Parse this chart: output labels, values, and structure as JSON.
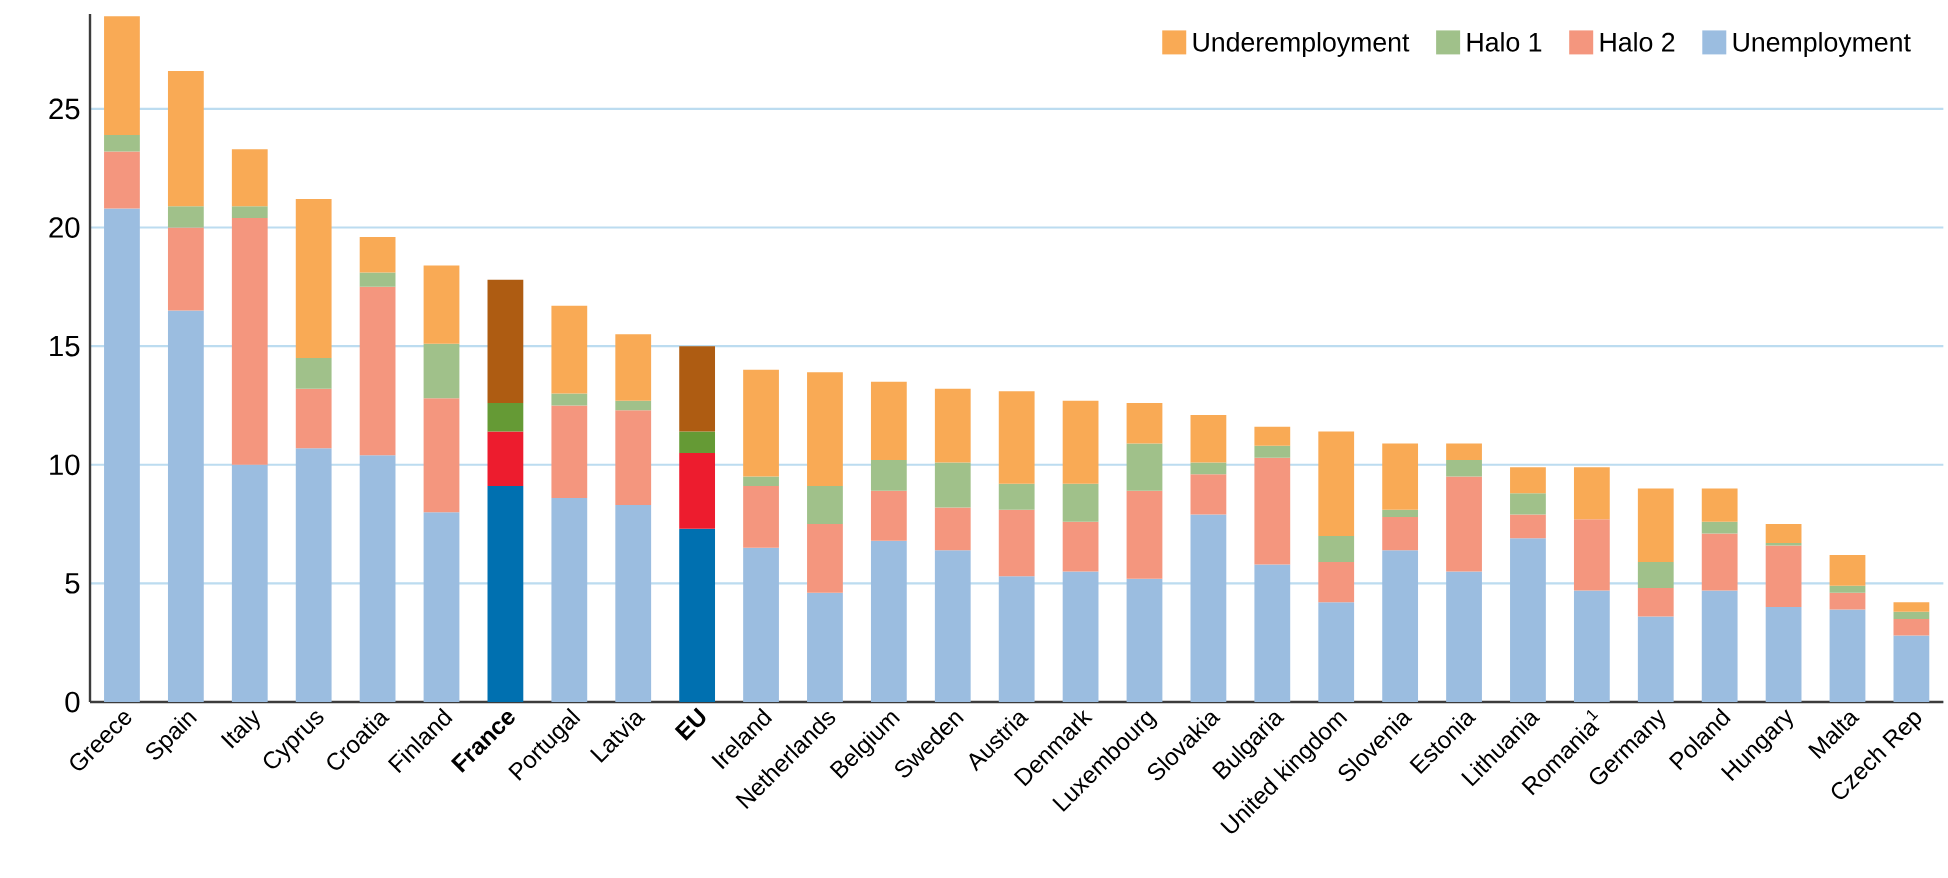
{
  "chart_data": {
    "type": "bar",
    "stacked": true,
    "categories": [
      "Greece",
      "Spain",
      "Italy",
      "Cyprus",
      "Croatia",
      "Finland",
      "France",
      "Portugal",
      "Latvia",
      "EU",
      "Ireland",
      "Netherlands",
      "Belgium",
      "Sweden",
      "Austria",
      "Denmark",
      "Luxembourg",
      "Slovakia",
      "Bulgaria",
      "United kingdom",
      "Slovenia",
      "Estonia",
      "Lithuania",
      "Romania$^{1}$",
      "Germany",
      "Poland",
      "Hungary",
      "Malta",
      "Czech Rep"
    ],
    "series": [
      {
        "name": "Unemployment",
        "color": "#9bbde0",
        "colors": [
          "#9bbde0",
          "#9bbde0",
          "#9bbde0",
          "#9bbde0",
          "#9bbde0",
          "#9bbde0",
          "#0070b0",
          "#9bbde0",
          "#9bbde0",
          "#0070b0",
          "#9bbde0",
          "#9bbde0",
          "#9bbde0",
          "#9bbde0",
          "#9bbde0",
          "#9bbde0",
          "#9bbde0",
          "#9bbde0",
          "#9bbde0",
          "#9bbde0",
          "#9bbde0",
          "#9bbde0",
          "#9bbde0",
          "#9bbde0",
          "#9bbde0",
          "#9bbde0",
          "#9bbde0",
          "#9bbde0",
          "#9bbde0"
        ],
        "values": [
          20.8,
          16.5,
          10.0,
          10.7,
          10.4,
          8.0,
          9.1,
          8.6,
          8.3,
          7.3,
          6.5,
          4.6,
          6.8,
          6.4,
          5.3,
          5.5,
          5.2,
          7.9,
          5.8,
          4.2,
          6.4,
          5.5,
          6.9,
          4.7,
          3.6,
          4.7,
          4.0,
          3.9,
          2.8
        ]
      },
      {
        "name": "Halo 2",
        "color": "#f4967e",
        "colors": [
          "#f4967e",
          "#f4967e",
          "#f4967e",
          "#f4967e",
          "#f4967e",
          "#f4967e",
          "#ed1c2e",
          "#f4967e",
          "#f4967e",
          "#ed1c2e",
          "#f4967e",
          "#f4967e",
          "#f4967e",
          "#f4967e",
          "#f4967e",
          "#f4967e",
          "#f4967e",
          "#f4967e",
          "#f4967e",
          "#f4967e",
          "#f4967e",
          "#f4967e",
          "#f4967e",
          "#f4967e",
          "#f4967e",
          "#f4967e",
          "#f4967e",
          "#f4967e",
          "#f4967e"
        ],
        "values": [
          2.4,
          3.5,
          10.4,
          2.5,
          7.1,
          4.8,
          2.3,
          3.9,
          4.0,
          3.2,
          2.6,
          2.9,
          2.1,
          1.8,
          2.8,
          2.1,
          3.7,
          1.7,
          4.5,
          1.7,
          1.4,
          4.0,
          1.0,
          3.0,
          1.2,
          2.4,
          2.6,
          0.7,
          0.7
        ]
      },
      {
        "name": "Halo 1",
        "color": "#a0c18a",
        "colors": [
          "#a0c18a",
          "#a0c18a",
          "#a0c18a",
          "#a0c18a",
          "#a0c18a",
          "#a0c18a",
          "#659a35",
          "#a0c18a",
          "#a0c18a",
          "#659a35",
          "#a0c18a",
          "#a0c18a",
          "#a0c18a",
          "#a0c18a",
          "#a0c18a",
          "#a0c18a",
          "#a0c18a",
          "#a0c18a",
          "#a0c18a",
          "#a0c18a",
          "#a0c18a",
          "#a0c18a",
          "#a0c18a",
          "#a0c18a",
          "#a0c18a",
          "#a0c18a",
          "#a0c18a",
          "#a0c18a",
          "#a0c18a"
        ],
        "values": [
          0.7,
          0.9,
          0.5,
          1.3,
          0.6,
          2.3,
          1.2,
          0.5,
          0.4,
          0.9,
          0.4,
          1.6,
          1.3,
          1.9,
          1.1,
          1.6,
          2.0,
          0.5,
          0.5,
          1.1,
          0.3,
          0.7,
          0.9,
          0.0,
          1.1,
          0.5,
          0.1,
          0.3,
          0.3
        ]
      },
      {
        "name": "Underemployment",
        "color": "#f9aa55",
        "colors": [
          "#f9aa55",
          "#f9aa55",
          "#f9aa55",
          "#f9aa55",
          "#f9aa55",
          "#f9aa55",
          "#ae5c12",
          "#f9aa55",
          "#f9aa55",
          "#ae5c12",
          "#f9aa55",
          "#f9aa55",
          "#f9aa55",
          "#f9aa55",
          "#f9aa55",
          "#f9aa55",
          "#f9aa55",
          "#f9aa55",
          "#f9aa55",
          "#f9aa55",
          "#f9aa55",
          "#f9aa55",
          "#f9aa55",
          "#f9aa55",
          "#f9aa55",
          "#f9aa55",
          "#f9aa55",
          "#f9aa55",
          "#f9aa55"
        ],
        "values": [
          5.0,
          5.7,
          2.4,
          6.7,
          1.5,
          3.3,
          5.2,
          3.7,
          2.8,
          3.6,
          4.5,
          4.8,
          3.3,
          3.1,
          3.9,
          3.5,
          1.7,
          2.0,
          0.8,
          4.4,
          2.8,
          0.7,
          1.1,
          2.2,
          3.1,
          1.4,
          0.8,
          1.3,
          0.4
        ]
      }
    ],
    "ylim": [
      0,
      29
    ],
    "yticks": [
      0,
      5,
      10,
      15,
      20,
      25
    ],
    "grid": "y",
    "legend": "top right"
  }
}
